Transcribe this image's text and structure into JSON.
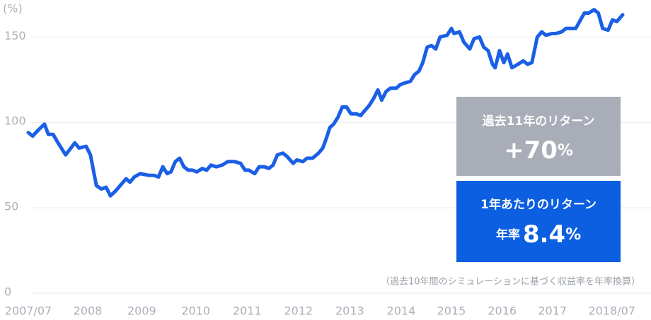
{
  "chart_data": {
    "type": "line",
    "y_unit_label": "(%)",
    "xlim": [
      2007.5,
      2018.5
    ],
    "xticks": [
      {
        "value": 2007.5,
        "label": "2007/07"
      },
      {
        "value": 2008.6,
        "label": "2008"
      },
      {
        "value": 2009.6,
        "label": "2009"
      },
      {
        "value": 2010.6,
        "label": "2010"
      },
      {
        "value": 2011.55,
        "label": "2011"
      },
      {
        "value": 2012.5,
        "label": "2012"
      },
      {
        "value": 2013.45,
        "label": "2013"
      },
      {
        "value": 2014.4,
        "label": "2014"
      },
      {
        "value": 2015.33,
        "label": "2015"
      },
      {
        "value": 2016.27,
        "label": "2016"
      },
      {
        "value": 2017.2,
        "label": "2017"
      },
      {
        "value": 2018.3,
        "label": "2018/07"
      }
    ],
    "ylim": [
      0,
      170
    ],
    "yticks": [
      0,
      50,
      100,
      150
    ],
    "grid": true,
    "series": [
      {
        "color": "#1a5fe6",
        "x": [
          2007.5,
          2007.58,
          2007.7,
          2007.8,
          2007.87,
          2007.96,
          2008.05,
          2008.19,
          2008.29,
          2008.36,
          2008.44,
          2008.57,
          2008.65,
          2008.76,
          2008.85,
          2008.94,
          2009.02,
          2009.12,
          2009.2,
          2009.31,
          2009.38,
          2009.46,
          2009.57,
          2009.73,
          2009.83,
          2009.91,
          2009.99,
          2010.07,
          2010.14,
          2010.22,
          2010.3,
          2010.38,
          2010.46,
          2010.54,
          2010.62,
          2010.72,
          2010.8,
          2010.88,
          2010.98,
          2011.09,
          2011.19,
          2011.32,
          2011.43,
          2011.51,
          2011.58,
          2011.69,
          2011.77,
          2011.87,
          2011.95,
          2012.03,
          2012.11,
          2012.21,
          2012.29,
          2012.4,
          2012.47,
          2012.58,
          2012.66,
          2012.76,
          2012.87,
          2012.95,
          2013.02,
          2013.08,
          2013.15,
          2013.23,
          2013.31,
          2013.39,
          2013.47,
          2013.57,
          2013.65,
          2013.73,
          2013.81,
          2013.89,
          2013.97,
          2014.04,
          2014.12,
          2014.2,
          2014.31,
          2014.38,
          2014.46,
          2014.57,
          2014.65,
          2014.73,
          2014.8,
          2014.88,
          2014.96,
          2015.04,
          2015.12,
          2015.25,
          2015.33,
          2015.38,
          2015.48,
          2015.56,
          2015.67,
          2015.75,
          2015.85,
          2015.93,
          2016.01,
          2016.09,
          2016.14,
          2016.22,
          2016.3,
          2016.37,
          2016.45,
          2016.56,
          2016.66,
          2016.74,
          2016.82,
          2016.92,
          2017.0,
          2017.08,
          2017.19,
          2017.26,
          2017.37,
          2017.45,
          2017.63,
          2017.79,
          2017.87,
          2017.97,
          2018.05,
          2018.13,
          2018.23,
          2018.31,
          2018.39,
          2018.5
        ],
        "values": [
          94,
          92,
          96,
          99,
          93,
          93,
          88,
          81,
          85,
          88,
          85,
          86,
          81,
          63,
          61,
          62,
          57,
          60,
          63,
          67,
          65,
          68,
          70,
          69,
          69,
          68,
          74,
          70,
          71,
          77,
          79,
          74,
          72,
          72,
          71,
          73,
          72,
          75,
          74,
          75,
          77,
          77,
          76,
          72,
          72,
          70,
          74,
          74,
          73,
          75,
          81,
          82,
          80,
          76,
          78,
          77,
          79,
          79,
          82,
          85,
          91,
          97,
          99,
          103,
          109,
          109,
          105,
          105,
          104,
          107,
          110,
          114,
          119,
          113,
          118,
          120,
          120,
          122,
          123,
          124,
          128,
          130,
          135,
          144,
          145,
          143,
          150,
          151,
          155,
          152,
          153,
          147,
          143,
          149,
          150,
          144,
          142,
          134,
          132,
          142,
          135,
          140,
          132,
          134,
          136,
          134,
          135,
          150,
          153,
          151,
          152,
          152,
          153,
          155,
          155,
          164,
          164,
          166,
          164,
          155,
          154,
          160,
          159,
          163
        ]
      }
    ],
    "box_total": {
      "title": "過去11年のリターン",
      "value": "+70",
      "unit": "%"
    },
    "box_annual": {
      "title": "1年あたりのリターン",
      "prefix": "年率",
      "value": "8.4",
      "unit": "%"
    },
    "note": "（過去10年間のシミュレーションに基づく収益率を年率換算）"
  }
}
